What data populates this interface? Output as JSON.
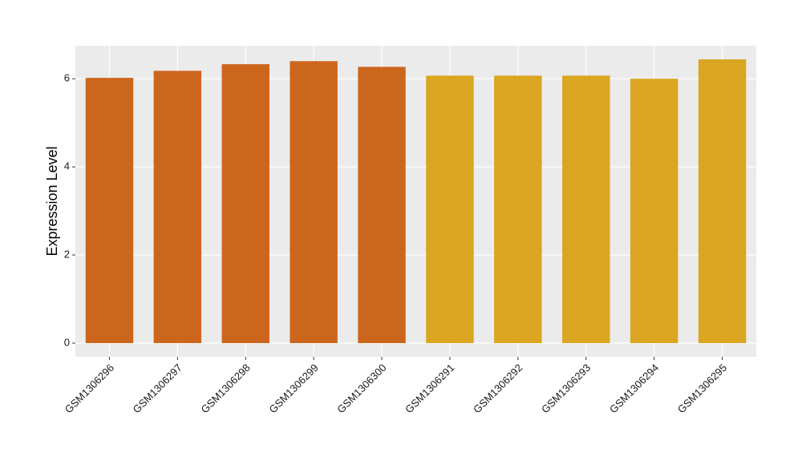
{
  "chart_data": {
    "type": "bar",
    "y_label": "Expression Level",
    "categories": [
      "GSM1306296",
      "GSM1306297",
      "GSM1306298",
      "GSM1306299",
      "GSM1306300",
      "GSM1306291",
      "GSM1306292",
      "GSM1306293",
      "GSM1306294",
      "GSM1306295"
    ],
    "values": [
      6.02,
      6.18,
      6.33,
      6.4,
      6.27,
      6.07,
      6.07,
      6.07,
      6.0,
      6.44
    ],
    "colors": [
      "#cd661d",
      "#cd661d",
      "#cd661d",
      "#cd661d",
      "#cd661d",
      "#daa520",
      "#daa520",
      "#daa520",
      "#daa520",
      "#daa520"
    ],
    "ylim": [
      -0.31,
      6.75
    ],
    "yticks": [
      0,
      2,
      4,
      6
    ],
    "grid": true
  }
}
